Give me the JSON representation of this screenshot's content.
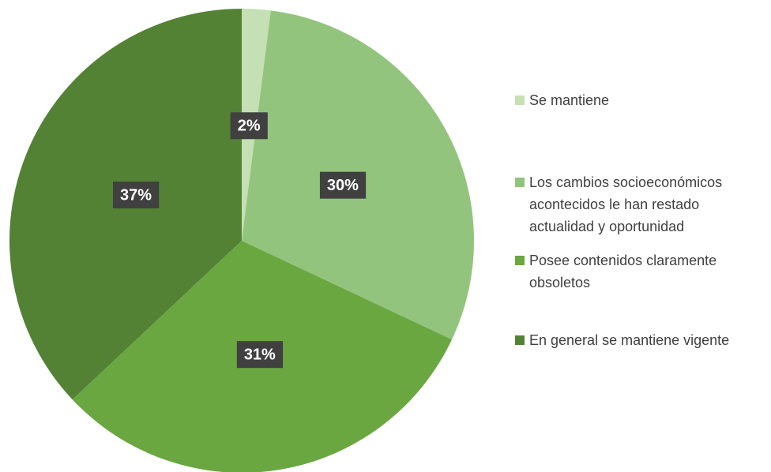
{
  "chart_data": {
    "type": "pie",
    "categories": [
      "Se mantiene",
      "Los cambios socioeconómicos acontecidos le han restado actualidad y oportunidad",
      "Posee contenidos claramente obsoletos",
      "En general se mantiene vigente"
    ],
    "values": [
      2,
      30,
      31,
      37
    ],
    "value_labels": [
      "2%",
      "30%",
      "31%",
      "37%"
    ],
    "colors": [
      "#c5e0b4",
      "#93c47d",
      "#6aa741",
      "#548235"
    ],
    "legend": "right"
  }
}
